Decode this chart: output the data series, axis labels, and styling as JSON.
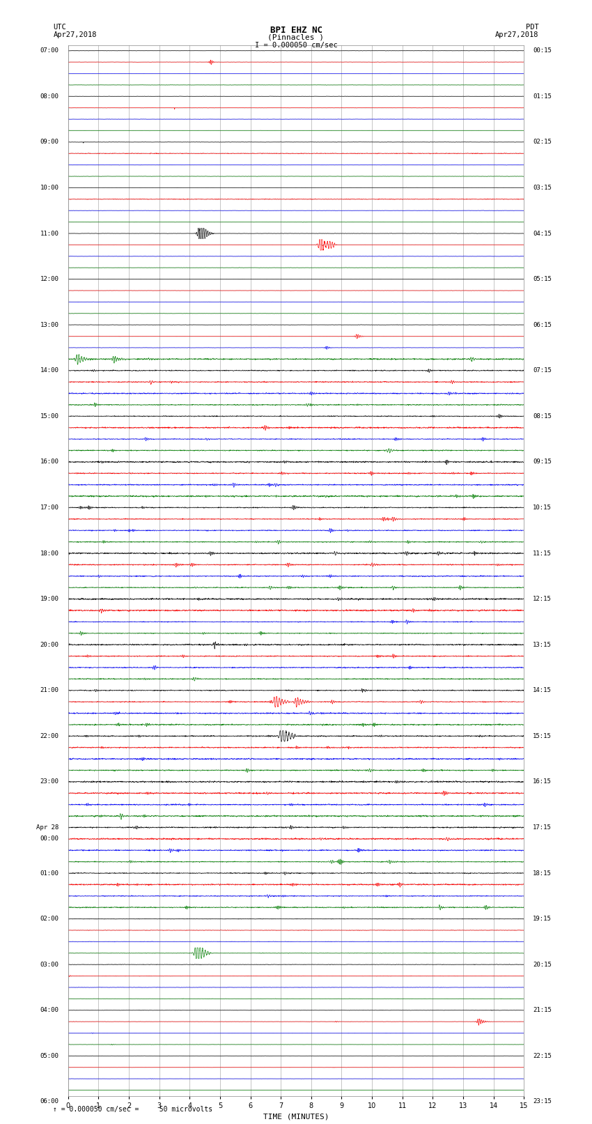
{
  "title_line1": "BPI EHZ NC",
  "title_line2": "(Pinnacles )",
  "scale_text": "I = 0.000050 cm/sec",
  "footer_text": "= 0.000050 cm/sec =     50 microvolts",
  "xlabel": "TIME (MINUTES)",
  "xlim": [
    0,
    15
  ],
  "xticks": [
    0,
    1,
    2,
    3,
    4,
    5,
    6,
    7,
    8,
    9,
    10,
    11,
    12,
    13,
    14,
    15
  ],
  "left_times": [
    "07:00",
    "",
    "",
    "",
    "08:00",
    "",
    "",
    "",
    "09:00",
    "",
    "",
    "",
    "10:00",
    "",
    "",
    "",
    "11:00",
    "",
    "",
    "",
    "12:00",
    "",
    "",
    "",
    "13:00",
    "",
    "",
    "",
    "14:00",
    "",
    "",
    "",
    "15:00",
    "",
    "",
    "",
    "16:00",
    "",
    "",
    "",
    "17:00",
    "",
    "",
    "",
    "18:00",
    "",
    "",
    "",
    "19:00",
    "",
    "",
    "",
    "20:00",
    "",
    "",
    "",
    "21:00",
    "",
    "",
    "",
    "22:00",
    "",
    "",
    "",
    "23:00",
    "",
    "",
    "",
    "Apr 28",
    "00:00",
    "",
    "",
    "01:00",
    "",
    "",
    "",
    "02:00",
    "",
    "",
    "",
    "03:00",
    "",
    "",
    "",
    "04:00",
    "",
    "",
    "",
    "05:00",
    "",
    "",
    "",
    "06:00",
    "",
    "",
    ""
  ],
  "right_times": [
    "00:15",
    "",
    "",
    "",
    "01:15",
    "",
    "",
    "",
    "02:15",
    "",
    "",
    "",
    "03:15",
    "",
    "",
    "",
    "04:15",
    "",
    "",
    "",
    "05:15",
    "",
    "",
    "",
    "06:15",
    "",
    "",
    "",
    "07:15",
    "",
    "",
    "",
    "08:15",
    "",
    "",
    "",
    "09:15",
    "",
    "",
    "",
    "10:15",
    "",
    "",
    "",
    "11:15",
    "",
    "",
    "",
    "12:15",
    "",
    "",
    "",
    "13:15",
    "",
    "",
    "",
    "14:15",
    "",
    "",
    "",
    "15:15",
    "",
    "",
    "",
    "16:15",
    "",
    "",
    "",
    "17:15",
    "",
    "",
    "",
    "18:15",
    "",
    "",
    "",
    "19:15",
    "",
    "",
    "",
    "20:15",
    "",
    "",
    "",
    "21:15",
    "",
    "",
    "",
    "22:15",
    "",
    "",
    "",
    "23:15",
    "",
    "",
    ""
  ],
  "n_traces": 92,
  "trace_colors_cycle": [
    "black",
    "red",
    "blue",
    "green"
  ],
  "bg_color": "white",
  "grid_color": "#999999"
}
